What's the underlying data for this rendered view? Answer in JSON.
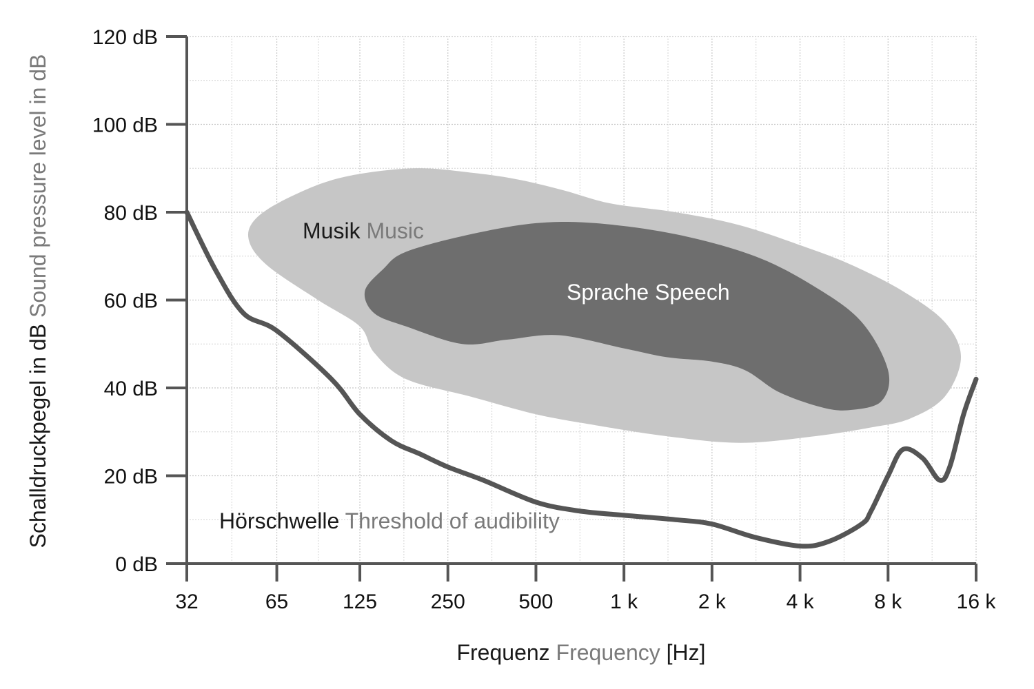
{
  "chart_data": {
    "type": "area",
    "x_scale": "log2",
    "x_ticks": [
      "32",
      "65",
      "125",
      "250",
      "500",
      "1 k",
      "2 k",
      "4 k",
      "8 k",
      "16 k"
    ],
    "x_tick_values": [
      32,
      65,
      125,
      250,
      500,
      1000,
      2000,
      4000,
      8000,
      16000
    ],
    "y_ticks": [
      "0 dB",
      "20 dB",
      "40 dB",
      "60 dB",
      "80 dB",
      "100 dB",
      "120 dB"
    ],
    "y_tick_values": [
      0,
      20,
      40,
      60,
      80,
      100,
      120
    ],
    "xlim": [
      32,
      16000
    ],
    "ylim": [
      0,
      120
    ],
    "grid": true,
    "xlabel": {
      "de": "Frequenz",
      "en": "Frequency",
      "unit": "[Hz]"
    },
    "ylabel": {
      "de": "Schalldruckpegel in dB",
      "en": "Sound pressure level in dB"
    },
    "regions": [
      {
        "label_de": "Musik",
        "label_en": "Music",
        "color": "#c6c6c6",
        "outline": [
          [
            52,
            74
          ],
          [
            56,
            79
          ],
          [
            75,
            84
          ],
          [
            110,
            88
          ],
          [
            190,
            90
          ],
          [
            300,
            89
          ],
          [
            430,
            87.5
          ],
          [
            620,
            85
          ],
          [
            900,
            82
          ],
          [
            1500,
            80
          ],
          [
            2500,
            77
          ],
          [
            4200,
            72
          ],
          [
            6000,
            68
          ],
          [
            9000,
            62
          ],
          [
            12500,
            55
          ],
          [
            14200,
            47
          ],
          [
            12500,
            38
          ],
          [
            9500,
            33
          ],
          [
            7000,
            31
          ],
          [
            4500,
            29
          ],
          [
            2500,
            27.5
          ],
          [
            1400,
            29
          ],
          [
            800,
            31.5
          ],
          [
            500,
            34
          ],
          [
            300,
            38
          ],
          [
            180,
            42
          ],
          [
            140,
            48
          ],
          [
            125,
            54
          ],
          [
            90,
            60
          ],
          [
            60,
            68
          ]
        ]
      },
      {
        "label_de": "Sprache",
        "label_en": "Speech",
        "color": "#6e6e6e",
        "outline": [
          [
            130,
            62
          ],
          [
            150,
            67
          ],
          [
            180,
            71
          ],
          [
            300,
            75
          ],
          [
            500,
            77.5
          ],
          [
            800,
            77.5
          ],
          [
            1500,
            75
          ],
          [
            2800,
            70
          ],
          [
            4500,
            63
          ],
          [
            6500,
            55
          ],
          [
            8000,
            44
          ],
          [
            7600,
            37
          ],
          [
            6000,
            35
          ],
          [
            4800,
            35.5
          ],
          [
            3400,
            39
          ],
          [
            2600,
            44
          ],
          [
            2000,
            46
          ],
          [
            1400,
            47
          ],
          [
            1000,
            49
          ],
          [
            600,
            52
          ],
          [
            400,
            51
          ],
          [
            280,
            50
          ],
          [
            180,
            54
          ],
          [
            140,
            57
          ]
        ]
      }
    ],
    "series": [
      {
        "label_de": "Hörschwelle",
        "label_en": "Threshold of audibility",
        "color": "#555555",
        "points": [
          [
            32,
            80
          ],
          [
            40,
            67
          ],
          [
            50,
            57
          ],
          [
            65,
            53
          ],
          [
            100,
            42
          ],
          [
            125,
            34
          ],
          [
            160,
            28
          ],
          [
            200,
            25
          ],
          [
            250,
            22
          ],
          [
            330,
            19
          ],
          [
            500,
            14
          ],
          [
            700,
            12
          ],
          [
            1000,
            11
          ],
          [
            1500,
            10
          ],
          [
            2000,
            9
          ],
          [
            2800,
            6
          ],
          [
            4000,
            4
          ],
          [
            5000,
            5
          ],
          [
            6500,
            9
          ],
          [
            7000,
            12
          ],
          [
            8000,
            20
          ],
          [
            9000,
            26
          ],
          [
            10500,
            24
          ],
          [
            12000,
            19
          ],
          [
            13000,
            22
          ],
          [
            14500,
            34
          ],
          [
            16000,
            42
          ]
        ]
      }
    ]
  }
}
